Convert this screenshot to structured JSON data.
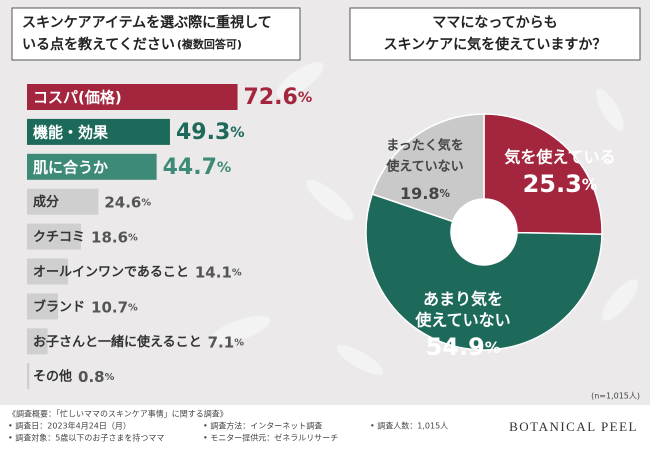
{
  "chart_data": [
    {
      "type": "bar",
      "title": [
        "スキンケアアイテムを選ぶ際に重視して",
        "いる点を教えてください"
      ],
      "subtitle": "(複数回答可)",
      "categories": [
        "コスパ(価格)",
        "機能・効果",
        "肌に合うか",
        "成分",
        "クチコミ",
        "オールインワンであること",
        "ブランド",
        "お子さんと一緒に使えること",
        "その他"
      ],
      "values": [
        72.6,
        49.3,
        44.7,
        24.6,
        18.6,
        14.1,
        10.7,
        7.1,
        0.8
      ],
      "value_labels": [
        "72.6%",
        "49.3%",
        "44.7%",
        "24.6%",
        "18.6%",
        "14.1%",
        "10.7%",
        "7.1%",
        "0.8%"
      ],
      "colors": [
        "#a3263e",
        "#1d6a5b",
        "#3e8a79",
        "#cfcfcf",
        "#cfcfcf",
        "#cfcfcf",
        "#cfcfcf",
        "#cfcfcf",
        "#cfcfcf"
      ]
    },
    {
      "type": "pie",
      "title": [
        "ママになってからも",
        "スキンケアに気を使えていますか？"
      ],
      "categories": [
        [
          "気を使えている"
        ],
        [
          "あまり気を",
          "使えていない"
        ],
        [
          "まったく気を",
          "使えていない"
        ]
      ],
      "values": [
        25.3,
        54.9,
        19.8
      ],
      "value_labels": [
        "25.3%",
        "54.9%",
        "19.8%"
      ],
      "colors": [
        "#a3263e",
        "#1d6a5b",
        "#c9c9c9"
      ],
      "note": "(n=1,015人)"
    }
  ],
  "footer": {
    "heading": "《調査概要：「忙しいママのスキンケア事情」に関する調査》",
    "items": [
      "• 調査日：2023年4月24日（月）",
      "• 調査対象：5歳以下のお子さまを持つママ",
      "• 調査方法：インターネット調査",
      "• モニター提供元：ゼネラルリサーチ",
      "• 調査人数：1,015人"
    ],
    "brand": "BOTANICAL PEEL"
  }
}
